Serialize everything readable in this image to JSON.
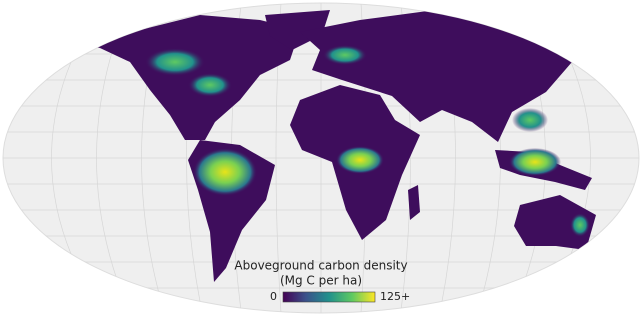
{
  "legend": {
    "title": "Aboveground carbon density",
    "unit": "(Mg C per ha)",
    "range": [
      0,
      125
    ],
    "ticks": [
      0,
      {
        "value": 125,
        "label": "125+"
      }
    ],
    "colors": [
      "#440154",
      "#3b528b",
      "#21918c",
      "#5ec962",
      "#fde725"
    ]
  }
}
